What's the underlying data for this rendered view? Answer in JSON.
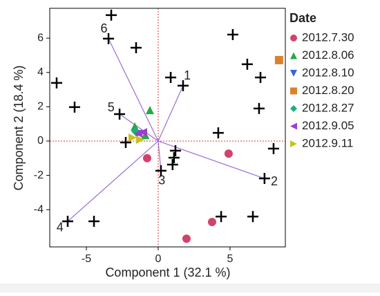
{
  "chart_data": {
    "type": "biplot",
    "x_label": "Component 1  (32.1 %)",
    "y_label": "Component 2  (18.4 %)",
    "xlim": [
      -7.55,
      8.85
    ],
    "ylim": [
      -6.17,
      7.74
    ],
    "xticks": [
      -5,
      0,
      5
    ],
    "yticks": [
      -4,
      -2,
      0,
      2,
      4,
      6
    ],
    "legend_title": "Date",
    "points": {
      "color": "#000000",
      "x": [
        -3.27,
        -3.46,
        -1.54,
        -7.07,
        -5.82,
        -2.69,
        -2.26,
        0.87,
        1.73,
        5.19,
        6.2,
        7.12,
        7.02,
        4.18,
        8.03,
        7.4,
        1.2,
        1.1,
        1.0,
        0.19,
        -6.3,
        -4.47,
        4.38,
        6.59
      ],
      "y": [
        7.34,
        5.97,
        5.44,
        3.39,
        1.98,
        1.57,
        -0.08,
        3.71,
        3.23,
        6.21,
        4.48,
        3.71,
        1.9,
        0.48,
        -0.44,
        -2.18,
        -0.56,
        -0.97,
        -1.37,
        -1.73,
        -4.68,
        -4.68,
        -4.4,
        -4.4
      ]
    },
    "vectors": [
      {
        "label": "1",
        "x": 1.73,
        "y": 3.23
      },
      {
        "label": "2",
        "x": 7.4,
        "y": -2.18
      },
      {
        "label": "3",
        "x": 0.19,
        "y": -1.73
      },
      {
        "label": "4",
        "x": -6.3,
        "y": -4.68
      },
      {
        "label": "5",
        "x": -2.69,
        "y": 1.57
      },
      {
        "label": "6",
        "x": -3.46,
        "y": 5.97
      }
    ],
    "series": [
      {
        "name": "2012.7.30",
        "color": "#d1436b",
        "marker": "circle",
        "x": [
          -0.77,
          4.9,
          3.75,
          1.97
        ],
        "y": [
          -1.0,
          -0.73,
          -4.72,
          -5.69
        ]
      },
      {
        "name": "2012.8.06",
        "color": "#27a844",
        "marker": "triangle-up",
        "x": [
          -0.58,
          -1.63,
          -0.9
        ],
        "y": [
          1.81,
          0.85,
          0.36
        ]
      },
      {
        "name": "2012.8.10",
        "color": "#3b62d6",
        "marker": "triangle-down",
        "x": [
          -1.49
        ],
        "y": [
          0.4
        ]
      },
      {
        "name": "2012.8.20",
        "color": "#d9822b",
        "marker": "square",
        "x": [
          8.41
        ],
        "y": [
          4.72
        ]
      },
      {
        "name": "2012.8.27",
        "color": "#1fae7a",
        "marker": "diamond",
        "x": [
          -1.59
        ],
        "y": [
          0.56
        ]
      },
      {
        "name": "2012.9.05",
        "color": "#9b3fd1",
        "marker": "triangle-left",
        "x": [
          -1.06,
          -1.39
        ],
        "y": [
          0.52,
          0.44
        ]
      },
      {
        "name": "2012.9.11",
        "color": "#c8c21e",
        "marker": "triangle-right",
        "x": [
          -1.78,
          -1.25
        ],
        "y": [
          0.2,
          0.08
        ]
      }
    ]
  }
}
